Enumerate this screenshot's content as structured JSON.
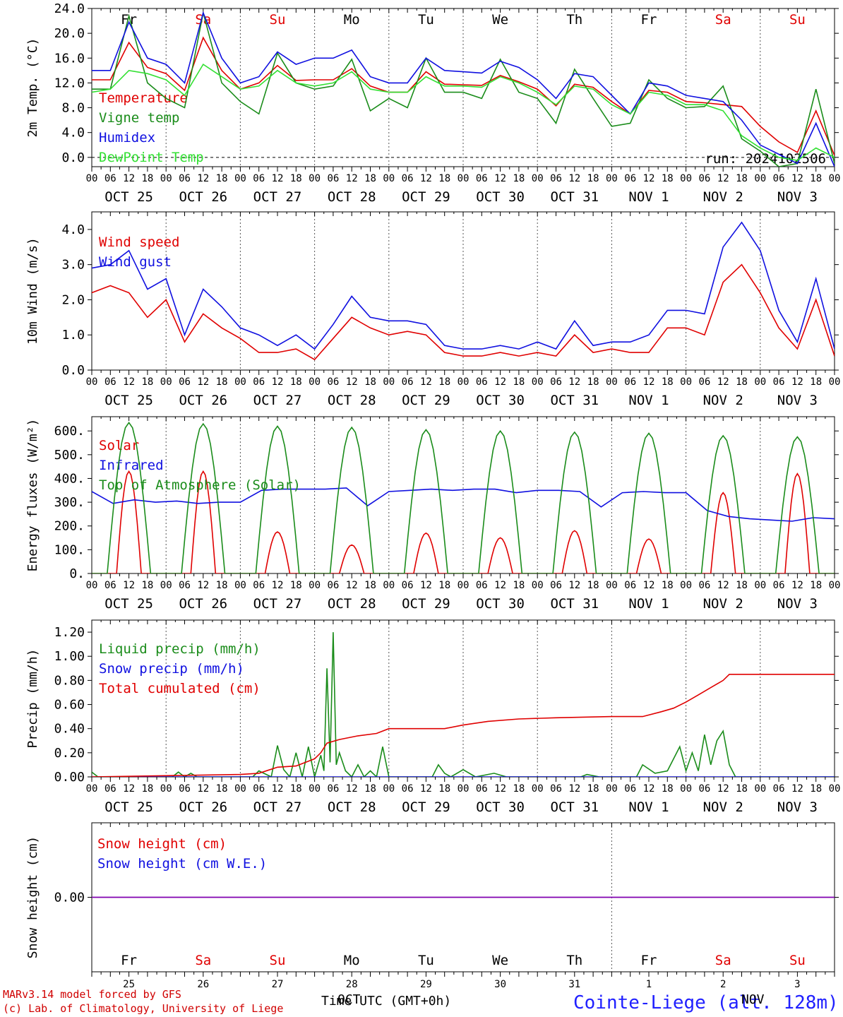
{
  "colors": {
    "red": "#e00000",
    "green": "#1a8c1a",
    "blue": "#1010e0",
    "lime": "#33e033",
    "purple": "#8000b0",
    "axis": "#000000"
  },
  "x_ticks": [
    "00",
    "06",
    "12",
    "18"
  ],
  "dates": [
    "OCT 25",
    "OCT 26",
    "OCT 27",
    "OCT 28",
    "OCT 29",
    "OCT 30",
    "OCT 31",
    "NOV  1",
    "NOV  2",
    "NOV  3"
  ],
  "weekdays": [
    {
      "text": "Fr",
      "color": "black"
    },
    {
      "text": "Sa",
      "color": "red"
    },
    {
      "text": "Su",
      "color": "red"
    },
    {
      "text": "Mo",
      "color": "black"
    },
    {
      "text": "Tu",
      "color": "black"
    },
    {
      "text": "We",
      "color": "black"
    },
    {
      "text": "Th",
      "color": "black"
    },
    {
      "text": "Fr",
      "color": "black"
    },
    {
      "text": "Sa",
      "color": "red"
    },
    {
      "text": "Su",
      "color": "red"
    }
  ],
  "day_numbers": [
    "25",
    "26",
    "27",
    "28",
    "29",
    "30",
    "31",
    "1",
    "2",
    "3"
  ],
  "run_label": "run: 2024102506",
  "footer": {
    "model": "MARv3.14 model forced by GFS",
    "lab": "(c) Lab. of Climatology, University of Liege",
    "time_label": "Time UTC (GMT+0h)",
    "month_oct": "OCT",
    "month_nov": "NOV",
    "station": "Cointe-Liege (alt. 128m)"
  },
  "chart_data": [
    {
      "id": "temp",
      "type": "line",
      "ylabel": "2m Temp. (°C)",
      "ylim": [
        -1.5,
        24
      ],
      "yticks": [
        0,
        4,
        8,
        12,
        16,
        20,
        24
      ],
      "ytick_labels": [
        "0.0",
        "4.0",
        "8.0",
        "12.0",
        "16.0",
        "20.0",
        "24.0"
      ],
      "zero_line": true,
      "x_hours": [
        0,
        6,
        12,
        18,
        24,
        30,
        36,
        42,
        48,
        54,
        60,
        66,
        72,
        78,
        84,
        90,
        96,
        102,
        108,
        114,
        120,
        126,
        132,
        138,
        144,
        150,
        156,
        162,
        168,
        174,
        180,
        186,
        192,
        198,
        204,
        210,
        216,
        222,
        228,
        234,
        240
      ],
      "series": [
        {
          "name": "Temperature",
          "color": "red",
          "values": [
            12.5,
            12.5,
            18.5,
            14.5,
            13.5,
            10.8,
            19.3,
            14.0,
            11.0,
            12.0,
            14.8,
            12.4,
            12.5,
            12.5,
            14.3,
            11.5,
            10.5,
            10.5,
            13.8,
            11.8,
            11.7,
            11.6,
            13.2,
            12.2,
            11.0,
            8.3,
            11.8,
            11.3,
            9.0,
            7.0,
            10.8,
            10.5,
            9.0,
            8.8,
            8.5,
            8.2,
            5.0,
            2.5,
            0.8,
            7.5,
            0.3
          ]
        },
        {
          "name": "Vigne temp",
          "color": "green",
          "values": [
            11.0,
            11.0,
            22.8,
            12.0,
            9.5,
            8.0,
            23.3,
            12.0,
            9.0,
            7.0,
            16.8,
            12.0,
            11.0,
            11.5,
            15.8,
            7.5,
            9.5,
            8.0,
            16.0,
            10.5,
            10.5,
            9.5,
            15.8,
            10.5,
            9.5,
            5.5,
            14.2,
            9.5,
            5.0,
            5.5,
            12.5,
            9.5,
            8.0,
            8.2,
            11.5,
            3.0,
            1.0,
            -1.5,
            -1.0,
            11.0,
            -1.0
          ]
        },
        {
          "name": "Humidex",
          "color": "blue",
          "values": [
            14.0,
            14.0,
            21.8,
            16.0,
            15.0,
            12.0,
            23.3,
            16.0,
            12.0,
            13.0,
            17.0,
            15.0,
            16.0,
            16.0,
            17.3,
            13.0,
            12.0,
            12.0,
            16.0,
            14.0,
            13.8,
            13.6,
            15.5,
            14.5,
            12.5,
            9.5,
            13.5,
            13.0,
            10.0,
            7.0,
            12.0,
            11.5,
            10.0,
            9.5,
            9.0,
            6.0,
            2.0,
            0.5,
            -1.0,
            5.5,
            -1.5
          ]
        },
        {
          "name": "DewPoint Temp",
          "color": "lime",
          "values": [
            10.5,
            11.0,
            14.0,
            13.5,
            12.5,
            10.0,
            15.0,
            13.0,
            11.0,
            11.5,
            14.0,
            12.0,
            11.5,
            12.0,
            13.8,
            11.0,
            10.5,
            10.5,
            13.0,
            11.5,
            11.5,
            11.3,
            13.0,
            12.0,
            10.5,
            8.5,
            11.5,
            11.0,
            8.5,
            7.0,
            10.5,
            10.0,
            8.5,
            8.5,
            7.5,
            3.5,
            1.5,
            0.0,
            -0.5,
            1.5,
            0.0
          ]
        }
      ]
    },
    {
      "id": "wind",
      "type": "line",
      "ylabel": "10m Wind (m/s)",
      "ylim": [
        0,
        4.5
      ],
      "yticks": [
        0,
        1,
        2,
        3,
        4
      ],
      "ytick_labels": [
        "0.0",
        "1.0",
        "2.0",
        "3.0",
        "4.0"
      ],
      "x_hours": [
        0,
        6,
        12,
        18,
        24,
        30,
        36,
        42,
        48,
        54,
        60,
        66,
        72,
        78,
        84,
        90,
        96,
        102,
        108,
        114,
        120,
        126,
        132,
        138,
        144,
        150,
        156,
        162,
        168,
        174,
        180,
        186,
        192,
        198,
        204,
        210,
        216,
        222,
        228,
        234,
        240
      ],
      "series": [
        {
          "name": "Wind speed",
          "color": "red",
          "values": [
            2.2,
            2.4,
            2.2,
            1.5,
            2.0,
            0.8,
            1.6,
            1.2,
            0.9,
            0.5,
            0.5,
            0.6,
            0.3,
            0.9,
            1.5,
            1.2,
            1.0,
            1.1,
            1.0,
            0.5,
            0.4,
            0.4,
            0.5,
            0.4,
            0.5,
            0.4,
            1.0,
            0.5,
            0.6,
            0.5,
            0.5,
            1.2,
            1.2,
            1.0,
            2.5,
            3.0,
            2.2,
            1.2,
            0.6,
            2.0,
            0.4
          ]
        },
        {
          "name": "Wind gust",
          "color": "blue",
          "values": [
            2.9,
            3.0,
            3.4,
            2.3,
            2.6,
            1.0,
            2.3,
            1.8,
            1.2,
            1.0,
            0.7,
            1.0,
            0.6,
            1.3,
            2.1,
            1.5,
            1.4,
            1.4,
            1.3,
            0.7,
            0.6,
            0.6,
            0.7,
            0.6,
            0.8,
            0.6,
            1.4,
            0.7,
            0.8,
            0.8,
            1.0,
            1.7,
            1.7,
            1.6,
            3.5,
            4.2,
            3.4,
            1.7,
            0.8,
            2.6,
            0.6
          ]
        }
      ]
    },
    {
      "id": "energy",
      "type": "line",
      "ylabel": "Energy fluxes (W/m²)",
      "ylim": [
        0,
        660
      ],
      "yticks": [
        0,
        100,
        200,
        300,
        400,
        500,
        600
      ],
      "ytick_labels": [
        "0.",
        "100.",
        "200.",
        "300.",
        "400.",
        "500.",
        "600."
      ],
      "series": [
        {
          "name": "Solar",
          "color": "red",
          "peaks": [
            430,
            430,
            175,
            120,
            170,
            150,
            180,
            145,
            340,
            420
          ]
        },
        {
          "name": "Infrared",
          "color": "blue",
          "values": [
            345,
            295,
            310,
            300,
            305,
            295,
            300,
            300,
            350,
            355,
            355,
            355,
            360,
            285,
            345,
            350,
            355,
            350,
            355,
            355,
            340,
            350,
            350,
            345,
            280,
            340,
            345,
            340,
            340,
            265,
            240,
            230,
            225,
            220,
            235,
            230
          ]
        },
        {
          "name": "Top of Atmosphere (Solar)",
          "color": "green",
          "peaks": [
            635,
            630,
            620,
            615,
            605,
            600,
            595,
            590,
            580,
            575
          ]
        }
      ]
    },
    {
      "id": "precip",
      "type": "line",
      "ylabel": "Precip (mm/h)",
      "ylim": [
        0,
        1.3
      ],
      "yticks": [
        0,
        0.2,
        0.4,
        0.6,
        0.8,
        1.0,
        1.2
      ],
      "ytick_labels": [
        "0.00",
        "0.20",
        "0.40",
        "0.60",
        "0.80",
        "1.00",
        "1.20"
      ],
      "series": [
        {
          "name": "Liquid precip (mm/h)",
          "color": "green",
          "points": [
            [
              0,
              0.04
            ],
            [
              2,
              0
            ],
            [
              26,
              0
            ],
            [
              28,
              0.04
            ],
            [
              30,
              0
            ],
            [
              32,
              0.03
            ],
            [
              34,
              0
            ],
            [
              52,
              0
            ],
            [
              54,
              0.05
            ],
            [
              58,
              0
            ],
            [
              60,
              0.26
            ],
            [
              62,
              0.06
            ],
            [
              64,
              0
            ],
            [
              66,
              0.2
            ],
            [
              68,
              0
            ],
            [
              70,
              0.25
            ],
            [
              72,
              0
            ],
            [
              74,
              0.18
            ],
            [
              75,
              0.05
            ],
            [
              76,
              0.9
            ],
            [
              77,
              0.12
            ],
            [
              78,
              1.2
            ],
            [
              79,
              0.1
            ],
            [
              80,
              0.2
            ],
            [
              82,
              0.05
            ],
            [
              84,
              0
            ],
            [
              86,
              0.1
            ],
            [
              88,
              0
            ],
            [
              90,
              0.05
            ],
            [
              92,
              0
            ],
            [
              94,
              0.25
            ],
            [
              96,
              0
            ],
            [
              110,
              0
            ],
            [
              112,
              0.1
            ],
            [
              114,
              0.03
            ],
            [
              116,
              0
            ],
            [
              120,
              0.06
            ],
            [
              124,
              0
            ],
            [
              130,
              0.03
            ],
            [
              134,
              0
            ],
            [
              158,
              0
            ],
            [
              160,
              0.02
            ],
            [
              164,
              0
            ],
            [
              176,
              0
            ],
            [
              178,
              0.1
            ],
            [
              182,
              0.03
            ],
            [
              186,
              0.05
            ],
            [
              190,
              0.25
            ],
            [
              192,
              0.05
            ],
            [
              194,
              0.2
            ],
            [
              196,
              0.05
            ],
            [
              198,
              0.35
            ],
            [
              200,
              0.1
            ],
            [
              202,
              0.3
            ],
            [
              204,
              0.38
            ],
            [
              206,
              0.1
            ],
            [
              208,
              0
            ],
            [
              240,
              0
            ]
          ]
        },
        {
          "name": "Snow precip (mm/h)",
          "color": "blue",
          "points": [
            [
              0,
              0
            ],
            [
              240,
              0
            ]
          ]
        },
        {
          "name": "Total cumulated (cm)",
          "color": "red",
          "points": [
            [
              0,
              0
            ],
            [
              24,
              0.01
            ],
            [
              48,
              0.02
            ],
            [
              54,
              0.03
            ],
            [
              60,
              0.08
            ],
            [
              66,
              0.09
            ],
            [
              72,
              0.15
            ],
            [
              74,
              0.2
            ],
            [
              76,
              0.28
            ],
            [
              80,
              0.31
            ],
            [
              86,
              0.34
            ],
            [
              92,
              0.36
            ],
            [
              96,
              0.4
            ],
            [
              114,
              0.4
            ],
            [
              120,
              0.43
            ],
            [
              128,
              0.46
            ],
            [
              138,
              0.48
            ],
            [
              150,
              0.49
            ],
            [
              168,
              0.5
            ],
            [
              178,
              0.5
            ],
            [
              184,
              0.54
            ],
            [
              188,
              0.57
            ],
            [
              192,
              0.62
            ],
            [
              196,
              0.68
            ],
            [
              200,
              0.74
            ],
            [
              204,
              0.8
            ],
            [
              206,
              0.85
            ],
            [
              240,
              0.85
            ]
          ]
        }
      ]
    },
    {
      "id": "snow",
      "type": "line",
      "ylabel": "Snow height (cm)",
      "ylim": [
        -1,
        1
      ],
      "yticks": [
        0
      ],
      "ytick_labels": [
        "0.00"
      ],
      "series": [
        {
          "name": "Snow height (cm)",
          "color": "red",
          "values": [
            0,
            0
          ]
        },
        {
          "name": "Snow height (cm W.E.)",
          "color": "blue",
          "values": [
            0,
            0
          ]
        }
      ]
    }
  ]
}
